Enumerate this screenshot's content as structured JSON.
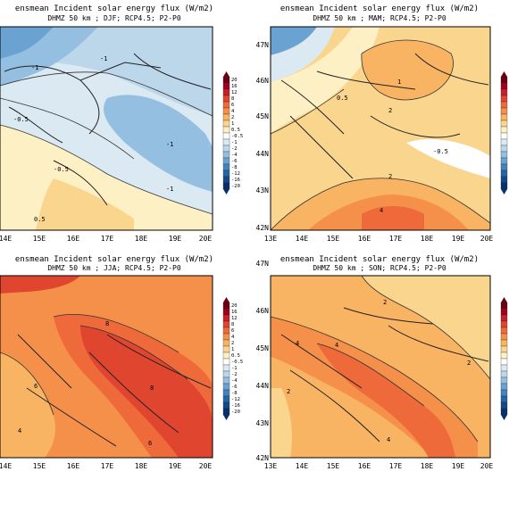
{
  "figure": {
    "panels": [
      {
        "id": "djf",
        "title": "ensmean Incident solar energy flux (W/m2)",
        "subtitle": "DHMZ 50 km ; DJF; RCP4.5; P2-P0",
        "season": "DJF",
        "lat_labels": [],
        "lon_labels": [
          "14E",
          "15E",
          "16E",
          "17E",
          "18E",
          "19E",
          "20E"
        ],
        "contour_labels": [
          "-1",
          "-0.5",
          "-0.5",
          "-1",
          "-1",
          "-1",
          "0.5"
        ]
      },
      {
        "id": "mam",
        "title": "ensmean Incident solar energy flux (W/m2)",
        "subtitle": "DHMZ 50 km ; MAM; RCP4.5; P2-P0",
        "season": "MAM",
        "lat_labels": [
          "47N",
          "46N",
          "45N",
          "44N",
          "43N",
          "42N"
        ],
        "lon_labels": [
          "13E",
          "14E",
          "15E",
          "16E",
          "17E",
          "18E",
          "19E",
          "20E"
        ],
        "contour_labels": [
          "1",
          "2",
          "0.5",
          "-0.5",
          "2",
          "4"
        ]
      },
      {
        "id": "jja",
        "title": "ensmean Incident solar energy flux (W/m2)",
        "subtitle": "DHMZ 50 km ; JJA; RCP4.5; P2-P0",
        "season": "JJA",
        "lat_labels": [],
        "lon_labels": [
          "14E",
          "15E",
          "16E",
          "17E",
          "18E",
          "19E",
          "20E"
        ],
        "contour_labels": [
          "8",
          "6",
          "4",
          "8",
          "6"
        ]
      },
      {
        "id": "son",
        "title": "ensmean Incident solar energy flux (W/m2)",
        "subtitle": "DHMZ 50 km ; SON; RCP4.5; P2-P0",
        "season": "SON",
        "lat_labels": [
          "47N",
          "46N",
          "45N",
          "44N",
          "43N",
          "42N"
        ],
        "lon_labels": [
          "13E",
          "14E",
          "15E",
          "16E",
          "17E",
          "18E",
          "19E",
          "20E"
        ],
        "contour_labels": [
          "2",
          "4",
          "4",
          "2",
          "4",
          "2"
        ]
      }
    ],
    "colorbar": {
      "levels": [
        "20",
        "16",
        "12",
        "8",
        "6",
        "4",
        "2",
        "1",
        "0.5",
        "-0.5",
        "-1",
        "-2",
        "-4",
        "-6",
        "-8",
        "-12",
        "-16",
        "-20"
      ],
      "colors": [
        "#6b0012",
        "#a3001f",
        "#c8202a",
        "#e0452f",
        "#ee6a3a",
        "#f5904a",
        "#f8b463",
        "#fad58e",
        "#fdf0c4",
        "#ffffff",
        "#dbe9f3",
        "#bcd6ea",
        "#94bfe0",
        "#6aa3d2",
        "#4384bf",
        "#2465a7",
        "#114a8c",
        "#08306b"
      ]
    }
  }
}
